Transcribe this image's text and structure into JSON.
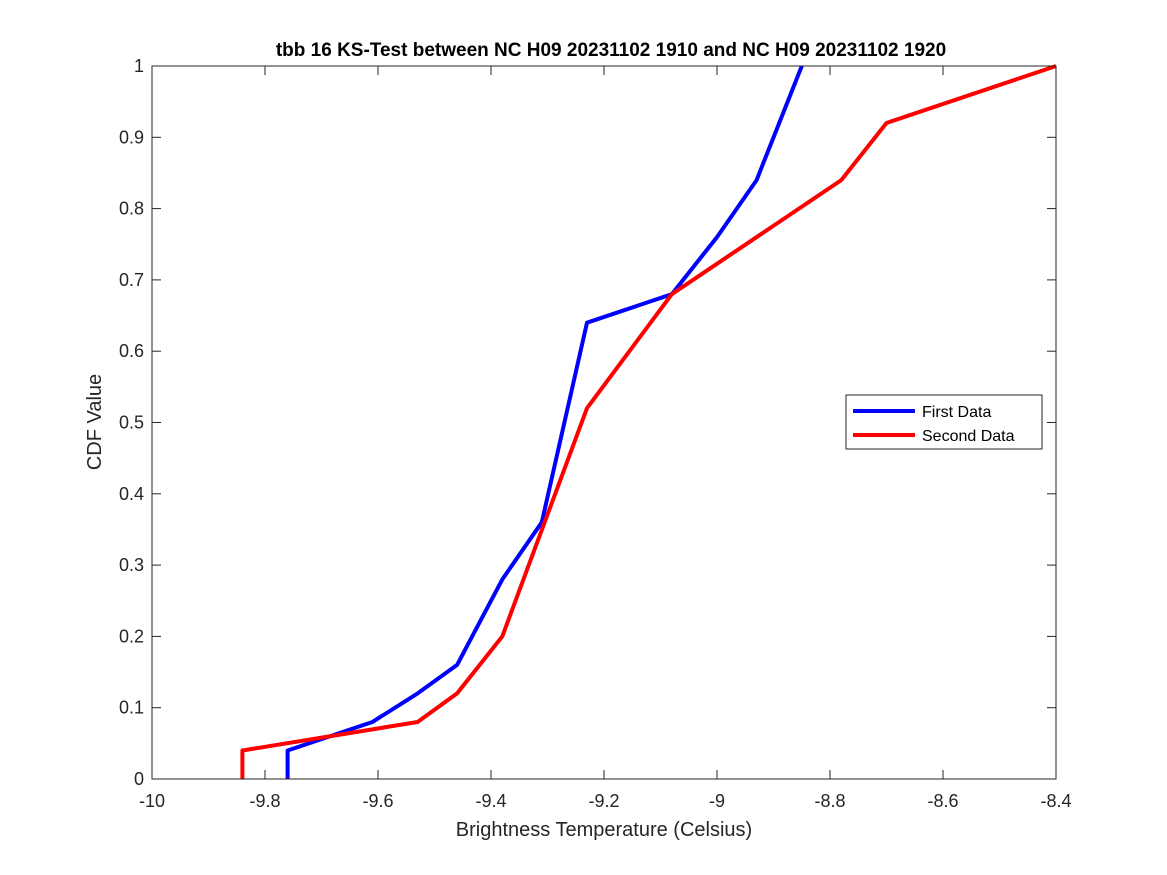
{
  "chart_data": {
    "type": "line",
    "title": "tbb 16 KS-Test between NC H09 20231102 1910 and NC H09 20231102 1920",
    "xlabel": "Brightness Temperature (Celsius)",
    "ylabel": "CDF Value",
    "xlim": [
      -10,
      -8.4
    ],
    "ylim": [
      0,
      1
    ],
    "xticks": [
      -10,
      -9.8,
      -9.6,
      -9.4,
      -9.2,
      -9,
      -8.8,
      -8.6,
      -8.4
    ],
    "xtick_labels": [
      "-10",
      "-9.8",
      "-9.6",
      "-9.4",
      "-9.2",
      "-9",
      "-8.8",
      "-8.6",
      "-8.4"
    ],
    "yticks": [
      0,
      0.1,
      0.2,
      0.3,
      0.4,
      0.5,
      0.6,
      0.7,
      0.8,
      0.9,
      1
    ],
    "ytick_labels": [
      "0",
      "0.1",
      "0.2",
      "0.3",
      "0.4",
      "0.5",
      "0.6",
      "0.7",
      "0.8",
      "0.9",
      "1"
    ],
    "grid": false,
    "legend_position": "right",
    "series": [
      {
        "name": "First Data",
        "color": "#0000ff",
        "x": [
          -9.76,
          -9.76,
          -9.61,
          -9.53,
          -9.46,
          -9.38,
          -9.31,
          -9.23,
          -9.08,
          -9.0,
          -8.93,
          -8.85
        ],
        "y": [
          0,
          0.04,
          0.08,
          0.12,
          0.16,
          0.28,
          0.36,
          0.64,
          0.68,
          0.76,
          0.84,
          1.0
        ]
      },
      {
        "name": "Second Data",
        "color": "#ff0000",
        "x": [
          -9.84,
          -9.84,
          -9.53,
          -9.46,
          -9.38,
          -9.23,
          -9.08,
          -8.78,
          -8.7,
          -8.4
        ],
        "y": [
          0,
          0.04,
          0.08,
          0.12,
          0.2,
          0.52,
          0.68,
          0.84,
          0.92,
          1.0
        ]
      }
    ]
  }
}
